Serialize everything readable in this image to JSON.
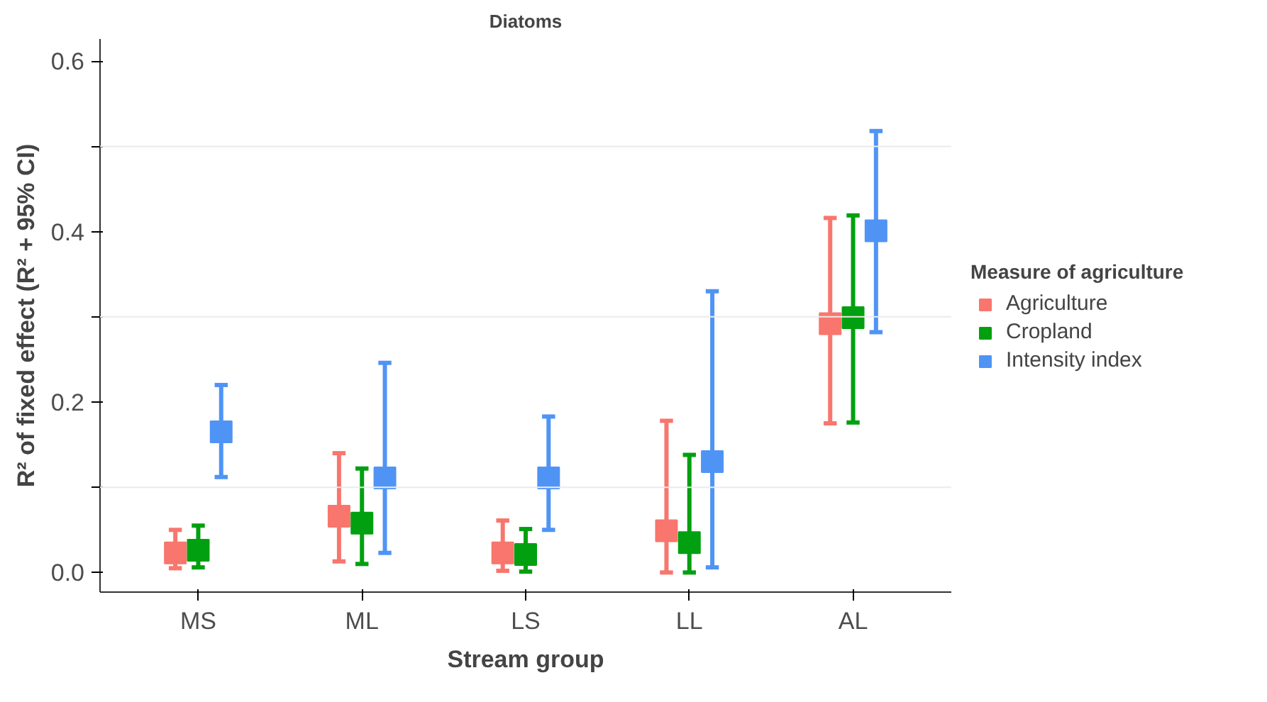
{
  "chart_data": {
    "type": "scatter",
    "title": "Diatoms",
    "xlabel": "Stream group",
    "ylabel": "R² of fixed effect (R² + 95% CI)",
    "legend_title": "Measure of agriculture",
    "categories": [
      "MS",
      "ML",
      "LS",
      "LL",
      "AL"
    ],
    "series": [
      {
        "name": "Agriculture",
        "color": "#f8766d",
        "values": [
          0.023,
          0.066,
          0.023,
          0.049,
          0.292
        ],
        "errors": [
          [
            0.005,
            0.05
          ],
          [
            0.013,
            0.14
          ],
          [
            0.002,
            0.061
          ],
          [
            0.0,
            0.178
          ],
          [
            0.175,
            0.416
          ]
        ]
      },
      {
        "name": "Cropland",
        "color": "#00a010",
        "values": [
          0.026,
          0.058,
          0.021,
          0.035,
          0.299
        ],
        "errors": [
          [
            0.006,
            0.055
          ],
          [
            0.01,
            0.122
          ],
          [
            0.001,
            0.051
          ],
          [
            0.0,
            0.138
          ],
          [
            0.176,
            0.419
          ]
        ]
      },
      {
        "name": "Intensity index",
        "color": "#4f94f5",
        "values": [
          0.165,
          0.111,
          0.111,
          0.13,
          0.401
        ],
        "errors": [
          [
            0.112,
            0.22
          ],
          [
            0.023,
            0.246
          ],
          [
            0.05,
            0.183
          ],
          [
            0.006,
            0.33
          ],
          [
            0.282,
            0.518
          ]
        ]
      }
    ],
    "ylim": [
      -0.023,
      0.626
    ],
    "yticks": [
      {
        "value": 0,
        "label": "0.0"
      },
      {
        "value": 0.1,
        "label": null
      },
      {
        "value": 0.2,
        "label": "0.2"
      },
      {
        "value": 0.3,
        "label": null
      },
      {
        "value": 0.4,
        "label": "0.4"
      },
      {
        "value": 0.5,
        "label": null
      },
      {
        "value": 0.6,
        "label": "0.6"
      }
    ],
    "grid": "y",
    "legend": "right",
    "marker": "square"
  }
}
